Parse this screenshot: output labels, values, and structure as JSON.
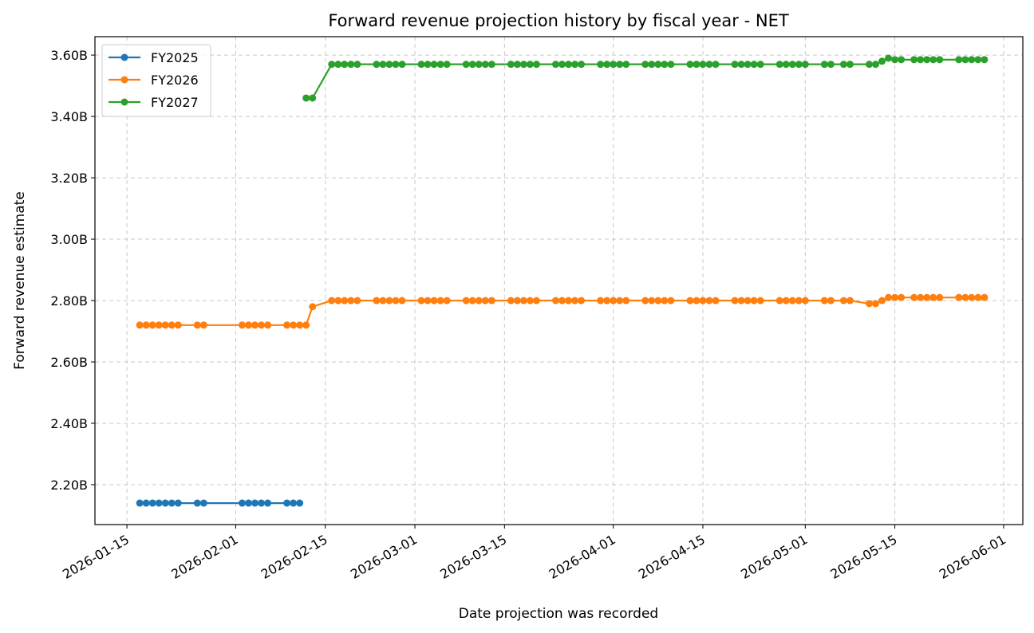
{
  "chart_data": {
    "type": "line",
    "title": "Forward revenue projection history by fiscal year - NET",
    "xlabel": "Date projection was recorded",
    "ylabel": "Forward revenue estimate",
    "x_type": "date",
    "xlim": [
      "2026-01-10",
      "2026-06-04"
    ],
    "ylim": [
      2.07,
      3.66
    ],
    "x_ticks": [
      "2026-01-15",
      "2026-02-01",
      "2026-02-15",
      "2026-03-01",
      "2026-03-15",
      "2026-04-01",
      "2026-04-15",
      "2026-05-01",
      "2026-05-15",
      "2026-06-01"
    ],
    "y_ticks": [
      2.2,
      2.4,
      2.6,
      2.8,
      3.0,
      3.2,
      3.4,
      3.6
    ],
    "y_tick_labels": [
      "2.20B",
      "2.40B",
      "2.60B",
      "2.80B",
      "3.00B",
      "3.20B",
      "3.40B",
      "3.60B"
    ],
    "grid": true,
    "legend_position": "top-left",
    "series": [
      {
        "name": "FY2025",
        "color": "#1f77b4",
        "points": [
          [
            "2026-01-17",
            2.14
          ],
          [
            "2026-01-18",
            2.14
          ],
          [
            "2026-01-19",
            2.14
          ],
          [
            "2026-01-20",
            2.14
          ],
          [
            "2026-01-21",
            2.14
          ],
          [
            "2026-01-22",
            2.14
          ],
          [
            "2026-01-23",
            2.14
          ],
          [
            "2026-01-26",
            2.14
          ],
          [
            "2026-01-27",
            2.14
          ],
          [
            "2026-02-02",
            2.14
          ],
          [
            "2026-02-03",
            2.14
          ],
          [
            "2026-02-04",
            2.14
          ],
          [
            "2026-02-05",
            2.14
          ],
          [
            "2026-02-06",
            2.14
          ],
          [
            "2026-02-09",
            2.14
          ],
          [
            "2026-02-10",
            2.14
          ],
          [
            "2026-02-11",
            2.14
          ]
        ]
      },
      {
        "name": "FY2026",
        "color": "#ff7f0e",
        "points": [
          [
            "2026-01-17",
            2.72
          ],
          [
            "2026-01-18",
            2.72
          ],
          [
            "2026-01-19",
            2.72
          ],
          [
            "2026-01-20",
            2.72
          ],
          [
            "2026-01-21",
            2.72
          ],
          [
            "2026-01-22",
            2.72
          ],
          [
            "2026-01-23",
            2.72
          ],
          [
            "2026-01-26",
            2.72
          ],
          [
            "2026-01-27",
            2.72
          ],
          [
            "2026-02-02",
            2.72
          ],
          [
            "2026-02-03",
            2.72
          ],
          [
            "2026-02-04",
            2.72
          ],
          [
            "2026-02-05",
            2.72
          ],
          [
            "2026-02-06",
            2.72
          ],
          [
            "2026-02-09",
            2.72
          ],
          [
            "2026-02-10",
            2.72
          ],
          [
            "2026-02-11",
            2.72
          ],
          [
            "2026-02-12",
            2.72
          ],
          [
            "2026-02-13",
            2.78
          ],
          [
            "2026-02-16",
            2.8
          ],
          [
            "2026-02-17",
            2.8
          ],
          [
            "2026-02-18",
            2.8
          ],
          [
            "2026-02-19",
            2.8
          ],
          [
            "2026-02-20",
            2.8
          ],
          [
            "2026-02-23",
            2.8
          ],
          [
            "2026-02-24",
            2.8
          ],
          [
            "2026-02-25",
            2.8
          ],
          [
            "2026-02-26",
            2.8
          ],
          [
            "2026-02-27",
            2.8
          ],
          [
            "2026-03-02",
            2.8
          ],
          [
            "2026-03-03",
            2.8
          ],
          [
            "2026-03-04",
            2.8
          ],
          [
            "2026-03-05",
            2.8
          ],
          [
            "2026-03-06",
            2.8
          ],
          [
            "2026-03-09",
            2.8
          ],
          [
            "2026-03-10",
            2.8
          ],
          [
            "2026-03-11",
            2.8
          ],
          [
            "2026-03-12",
            2.8
          ],
          [
            "2026-03-13",
            2.8
          ],
          [
            "2026-03-16",
            2.8
          ],
          [
            "2026-03-17",
            2.8
          ],
          [
            "2026-03-18",
            2.8
          ],
          [
            "2026-03-19",
            2.8
          ],
          [
            "2026-03-20",
            2.8
          ],
          [
            "2026-03-23",
            2.8
          ],
          [
            "2026-03-24",
            2.8
          ],
          [
            "2026-03-25",
            2.8
          ],
          [
            "2026-03-26",
            2.8
          ],
          [
            "2026-03-27",
            2.8
          ],
          [
            "2026-03-30",
            2.8
          ],
          [
            "2026-03-31",
            2.8
          ],
          [
            "2026-04-01",
            2.8
          ],
          [
            "2026-04-02",
            2.8
          ],
          [
            "2026-04-03",
            2.8
          ],
          [
            "2026-04-06",
            2.8
          ],
          [
            "2026-04-07",
            2.8
          ],
          [
            "2026-04-08",
            2.8
          ],
          [
            "2026-04-09",
            2.8
          ],
          [
            "2026-04-10",
            2.8
          ],
          [
            "2026-04-13",
            2.8
          ],
          [
            "2026-04-14",
            2.8
          ],
          [
            "2026-04-15",
            2.8
          ],
          [
            "2026-04-16",
            2.8
          ],
          [
            "2026-04-17",
            2.8
          ],
          [
            "2026-04-20",
            2.8
          ],
          [
            "2026-04-21",
            2.8
          ],
          [
            "2026-04-22",
            2.8
          ],
          [
            "2026-04-23",
            2.8
          ],
          [
            "2026-04-24",
            2.8
          ],
          [
            "2026-04-27",
            2.8
          ],
          [
            "2026-04-28",
            2.8
          ],
          [
            "2026-04-29",
            2.8
          ],
          [
            "2026-04-30",
            2.8
          ],
          [
            "2026-05-01",
            2.8
          ],
          [
            "2026-05-04",
            2.8
          ],
          [
            "2026-05-05",
            2.8
          ],
          [
            "2026-05-07",
            2.8
          ],
          [
            "2026-05-08",
            2.8
          ],
          [
            "2026-05-11",
            2.79
          ],
          [
            "2026-05-12",
            2.79
          ],
          [
            "2026-05-13",
            2.8
          ],
          [
            "2026-05-14",
            2.81
          ],
          [
            "2026-05-15",
            2.81
          ],
          [
            "2026-05-16",
            2.81
          ],
          [
            "2026-05-18",
            2.81
          ],
          [
            "2026-05-19",
            2.81
          ],
          [
            "2026-05-20",
            2.81
          ],
          [
            "2026-05-21",
            2.81
          ],
          [
            "2026-05-22",
            2.81
          ],
          [
            "2026-05-25",
            2.81
          ],
          [
            "2026-05-26",
            2.81
          ],
          [
            "2026-05-27",
            2.81
          ],
          [
            "2026-05-28",
            2.81
          ],
          [
            "2026-05-29",
            2.81
          ]
        ]
      },
      {
        "name": "FY2027",
        "color": "#2ca02c",
        "points": [
          [
            "2026-02-12",
            3.46
          ],
          [
            "2026-02-13",
            3.46
          ],
          [
            "2026-02-16",
            3.57
          ],
          [
            "2026-02-17",
            3.57
          ],
          [
            "2026-02-18",
            3.57
          ],
          [
            "2026-02-19",
            3.57
          ],
          [
            "2026-02-20",
            3.57
          ],
          [
            "2026-02-23",
            3.57
          ],
          [
            "2026-02-24",
            3.57
          ],
          [
            "2026-02-25",
            3.57
          ],
          [
            "2026-02-26",
            3.57
          ],
          [
            "2026-02-27",
            3.57
          ],
          [
            "2026-03-02",
            3.57
          ],
          [
            "2026-03-03",
            3.57
          ],
          [
            "2026-03-04",
            3.57
          ],
          [
            "2026-03-05",
            3.57
          ],
          [
            "2026-03-06",
            3.57
          ],
          [
            "2026-03-09",
            3.57
          ],
          [
            "2026-03-10",
            3.57
          ],
          [
            "2026-03-11",
            3.57
          ],
          [
            "2026-03-12",
            3.57
          ],
          [
            "2026-03-13",
            3.57
          ],
          [
            "2026-03-16",
            3.57
          ],
          [
            "2026-03-17",
            3.57
          ],
          [
            "2026-03-18",
            3.57
          ],
          [
            "2026-03-19",
            3.57
          ],
          [
            "2026-03-20",
            3.57
          ],
          [
            "2026-03-23",
            3.57
          ],
          [
            "2026-03-24",
            3.57
          ],
          [
            "2026-03-25",
            3.57
          ],
          [
            "2026-03-26",
            3.57
          ],
          [
            "2026-03-27",
            3.57
          ],
          [
            "2026-03-30",
            3.57
          ],
          [
            "2026-03-31",
            3.57
          ],
          [
            "2026-04-01",
            3.57
          ],
          [
            "2026-04-02",
            3.57
          ],
          [
            "2026-04-03",
            3.57
          ],
          [
            "2026-04-06",
            3.57
          ],
          [
            "2026-04-07",
            3.57
          ],
          [
            "2026-04-08",
            3.57
          ],
          [
            "2026-04-09",
            3.57
          ],
          [
            "2026-04-10",
            3.57
          ],
          [
            "2026-04-13",
            3.57
          ],
          [
            "2026-04-14",
            3.57
          ],
          [
            "2026-04-15",
            3.57
          ],
          [
            "2026-04-16",
            3.57
          ],
          [
            "2026-04-17",
            3.57
          ],
          [
            "2026-04-20",
            3.57
          ],
          [
            "2026-04-21",
            3.57
          ],
          [
            "2026-04-22",
            3.57
          ],
          [
            "2026-04-23",
            3.57
          ],
          [
            "2026-04-24",
            3.57
          ],
          [
            "2026-04-27",
            3.57
          ],
          [
            "2026-04-28",
            3.57
          ],
          [
            "2026-04-29",
            3.57
          ],
          [
            "2026-04-30",
            3.57
          ],
          [
            "2026-05-01",
            3.57
          ],
          [
            "2026-05-04",
            3.57
          ],
          [
            "2026-05-05",
            3.57
          ],
          [
            "2026-05-07",
            3.57
          ],
          [
            "2026-05-08",
            3.57
          ],
          [
            "2026-05-11",
            3.57
          ],
          [
            "2026-05-12",
            3.57
          ],
          [
            "2026-05-13",
            3.58
          ],
          [
            "2026-05-14",
            3.59
          ],
          [
            "2026-05-15",
            3.585
          ],
          [
            "2026-05-16",
            3.585
          ],
          [
            "2026-05-18",
            3.585
          ],
          [
            "2026-05-19",
            3.585
          ],
          [
            "2026-05-20",
            3.585
          ],
          [
            "2026-05-21",
            3.585
          ],
          [
            "2026-05-22",
            3.585
          ],
          [
            "2026-05-25",
            3.585
          ],
          [
            "2026-05-26",
            3.585
          ],
          [
            "2026-05-27",
            3.585
          ],
          [
            "2026-05-28",
            3.585
          ],
          [
            "2026-05-29",
            3.585
          ]
        ]
      }
    ]
  }
}
